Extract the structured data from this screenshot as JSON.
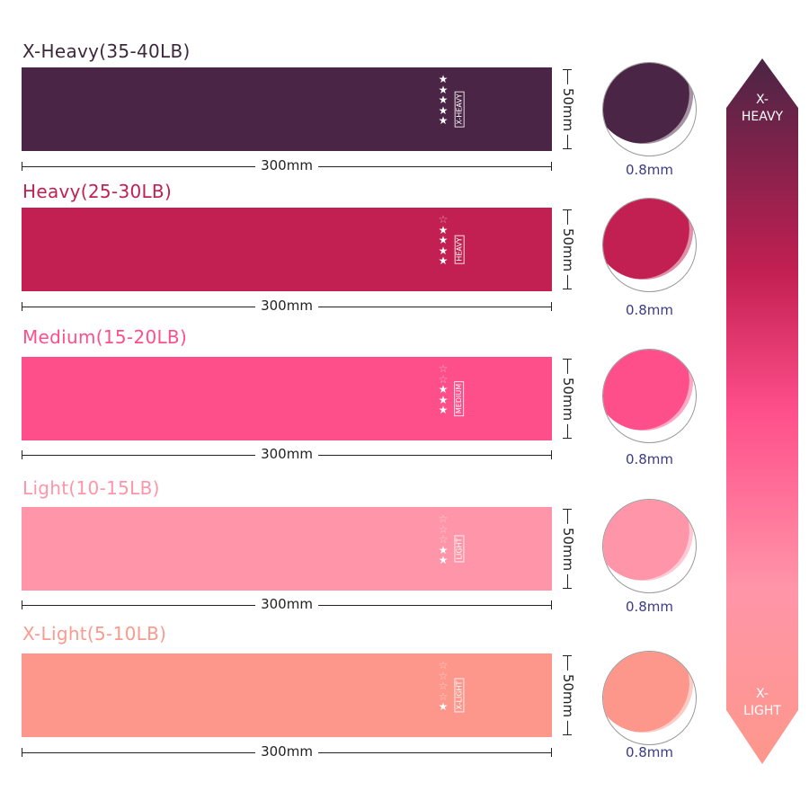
{
  "bands": [
    {
      "title": "X-Heavy(35-40LB)",
      "label": "X-HEAVY",
      "stars": 5,
      "length": "300mm",
      "width": "50mm",
      "thickness": "0.8mm",
      "color": "#4a2545",
      "title_color": "#3c2a3c"
    },
    {
      "title": "Heavy(25-30LB)",
      "label": "HEAVY",
      "stars": 4,
      "length": "300mm",
      "width": "50mm",
      "thickness": "0.8mm",
      "color": "#c21f52",
      "title_color": "#c21f52"
    },
    {
      "title": "Medium(15-20LB)",
      "label": "MEDIUM",
      "stars": 3,
      "length": "300mm",
      "width": "50mm",
      "thickness": "0.8mm",
      "color": "#ff4f8b",
      "title_color": "#ff4f8b"
    },
    {
      "title": "Light(10-15LB)",
      "label": "LIGHT",
      "stars": 2,
      "length": "300mm",
      "width": "50mm",
      "thickness": "0.8mm",
      "color": "#ff95a8",
      "title_color": "#ff95a8"
    },
    {
      "title": "X-Light(5-10LB)",
      "label": "X-LIGHT",
      "stars": 1,
      "length": "300mm",
      "width": "50mm",
      "thickness": "0.8mm",
      "color": "#fd978b",
      "title_color": "#fb9a8e"
    }
  ],
  "scale": {
    "top_label_1": "X-",
    "top_label_2": "HEAVY",
    "bottom_label_1": "X-",
    "bottom_label_2": "LIGHT",
    "gradient": [
      "#4a2545",
      "#c21f52",
      "#ff4f8b",
      "#ff95a8",
      "#fd978b"
    ]
  }
}
